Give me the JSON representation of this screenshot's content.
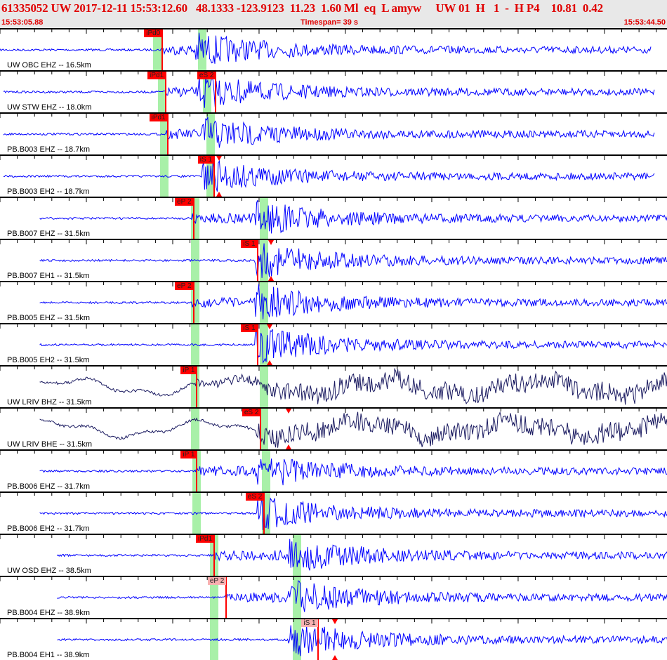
{
  "header": {
    "title": "61335052 UW 2017-12-11 15:53:12.60   48.1333 -123.9123  11.23  1.60 Ml  eq  L amyw     UW 01  H   1  -  H P4    10.81  0.42",
    "start_time": "15:53:05.88",
    "timespan": "Timespan=  39 s",
    "end_time": "15:53:44.50"
  },
  "colors": {
    "trace": "#0000ff",
    "broadband_trace": "#1a1a60",
    "pick": "#ff0000",
    "window": "#a8f0a8"
  },
  "channels": [
    {
      "label": "UW OBC EHZ -- 16.5km",
      "picks": [
        {
          "label": "iPd0",
          "t": 9.4
        }
      ],
      "windows": [
        9.1,
        11.7
      ],
      "trace": [
        0,
        37.7
      ]
    },
    {
      "label": "UW STW EHZ -- 18.0km",
      "picks": [
        {
          "label": "iPd1",
          "t": 9.6
        },
        {
          "label": "eS 2",
          "t": 12.5
        }
      ],
      "windows": [
        9.4,
        12.0
      ],
      "trace": [
        0.2,
        37.9
      ]
    },
    {
      "label": "PB.B003 EHZ -- 18.7km",
      "picks": [
        {
          "label": "iPd1",
          "t": 9.7
        }
      ],
      "windows": [
        9.5,
        12.2
      ],
      "trace": [
        0.2,
        37.9
      ]
    },
    {
      "label": "PB.B003 EH2 -- 18.7km",
      "picks": [
        {
          "label": "iS 1",
          "t": 12.4,
          "tri": 12.7
        }
      ],
      "windows": [
        9.5,
        12.2
      ],
      "trace": [
        0.2,
        37.9
      ]
    },
    {
      "label": "PB.B007 EHZ -- 31.5km",
      "picks": [
        {
          "label": "eP 2",
          "t": 11.2
        }
      ],
      "windows": [
        11.3,
        15.3
      ],
      "trace": [
        2.3,
        38.9
      ]
    },
    {
      "label": "PB.B007 EH1 -- 31.5km",
      "picks": [
        {
          "label": "iS 1",
          "t": 14.9,
          "tri": 15.7
        }
      ],
      "windows": [
        11.3,
        15.3
      ],
      "trace": [
        2.3,
        38.9
      ]
    },
    {
      "label": "PB.B005 EHZ -- 31.5km",
      "picks": [
        {
          "label": "eP 2",
          "t": 11.2
        }
      ],
      "windows": [
        11.3,
        15.3
      ],
      "trace": [
        2.3,
        38.9
      ]
    },
    {
      "label": "PB.B005 EH2 -- 31.5km",
      "picks": [
        {
          "label": "iS 1",
          "t": 14.9,
          "tri": 15.6
        }
      ],
      "windows": [
        11.3,
        15.3
      ],
      "trace": [
        2.3,
        38.9
      ]
    },
    {
      "label": "UW LRIV BHZ -- 31.5km",
      "picks": [
        {
          "label": "iP 1",
          "t": 11.4
        }
      ],
      "windows": [
        11.3,
        15.3
      ],
      "trace": [
        2.3,
        38.9
      ],
      "broadband": true
    },
    {
      "label": "UW LRIV BHE -- 31.5km",
      "picks": [
        {
          "label": "eS 2",
          "t": 15.1,
          "tri": 16.7
        }
      ],
      "windows": [
        11.3,
        15.3
      ],
      "trace": [
        2.3,
        38.9
      ],
      "broadband": true
    },
    {
      "label": "PB.B006 EHZ -- 31.7km",
      "picks": [
        {
          "label": "iP 1",
          "t": 11.4
        }
      ],
      "windows": [
        11.4,
        15.4
      ],
      "trace": [
        2.3,
        38.9
      ]
    },
    {
      "label": "PB.B006 EH2 -- 31.7km",
      "picks": [
        {
          "label": "eS 2",
          "t": 15.3
        }
      ],
      "windows": [
        11.4,
        15.4
      ],
      "trace": [
        2.3,
        38.9
      ]
    },
    {
      "label": "UW OSD EHZ -- 38.5km",
      "picks": [
        {
          "label": "iPd1",
          "t": 12.4
        }
      ],
      "windows": [
        12.4,
        17.2
      ],
      "trace": [
        3.3,
        39
      ]
    },
    {
      "label": "PB.B004 EHZ -- 38.9km",
      "picks": [
        {
          "label": "eP 2",
          "t": 13.1,
          "pink": true
        }
      ],
      "windows": [
        12.4,
        17.2
      ],
      "trace": [
        3.3,
        39
      ]
    },
    {
      "label": "PB.B004 EH1 -- 38.9km",
      "picks": [
        {
          "label": "iS 1",
          "t": 18.4,
          "tri": 19.4,
          "pink": true
        }
      ],
      "windows": [
        12.4,
        17.2
      ],
      "trace": [
        3.3,
        39
      ]
    }
  ]
}
